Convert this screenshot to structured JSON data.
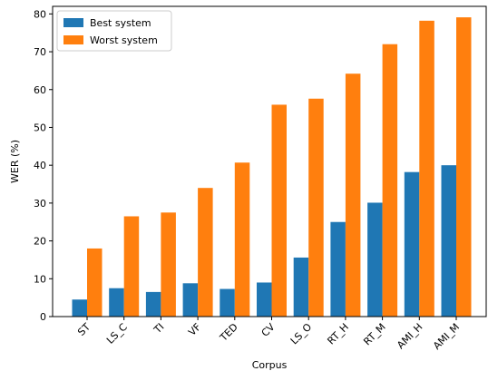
{
  "chart_data": {
    "type": "bar",
    "xlabel": "Corpus",
    "ylabel": "WER (%)",
    "ylim": [
      0,
      82
    ],
    "yticks": [
      0,
      10,
      20,
      30,
      40,
      50,
      60,
      70,
      80
    ],
    "grid": false,
    "legend": "top-left",
    "categories": [
      "ST",
      "LS_C",
      "TI",
      "VF",
      "TED",
      "CV",
      "LS_O",
      "RT_H",
      "RT_M",
      "AMI_H",
      "AMI_M"
    ],
    "series": [
      {
        "name": "Best system",
        "color": "#1f77b4",
        "values": [
          4.5,
          7.5,
          6.5,
          8.8,
          7.3,
          9.0,
          15.6,
          25.0,
          30.1,
          38.2,
          40.0
        ]
      },
      {
        "name": "Worst system",
        "color": "#ff7f0e",
        "values": [
          18.0,
          26.5,
          27.5,
          34.0,
          40.7,
          56.0,
          57.6,
          64.2,
          72.0,
          78.2,
          79.1
        ]
      }
    ]
  }
}
